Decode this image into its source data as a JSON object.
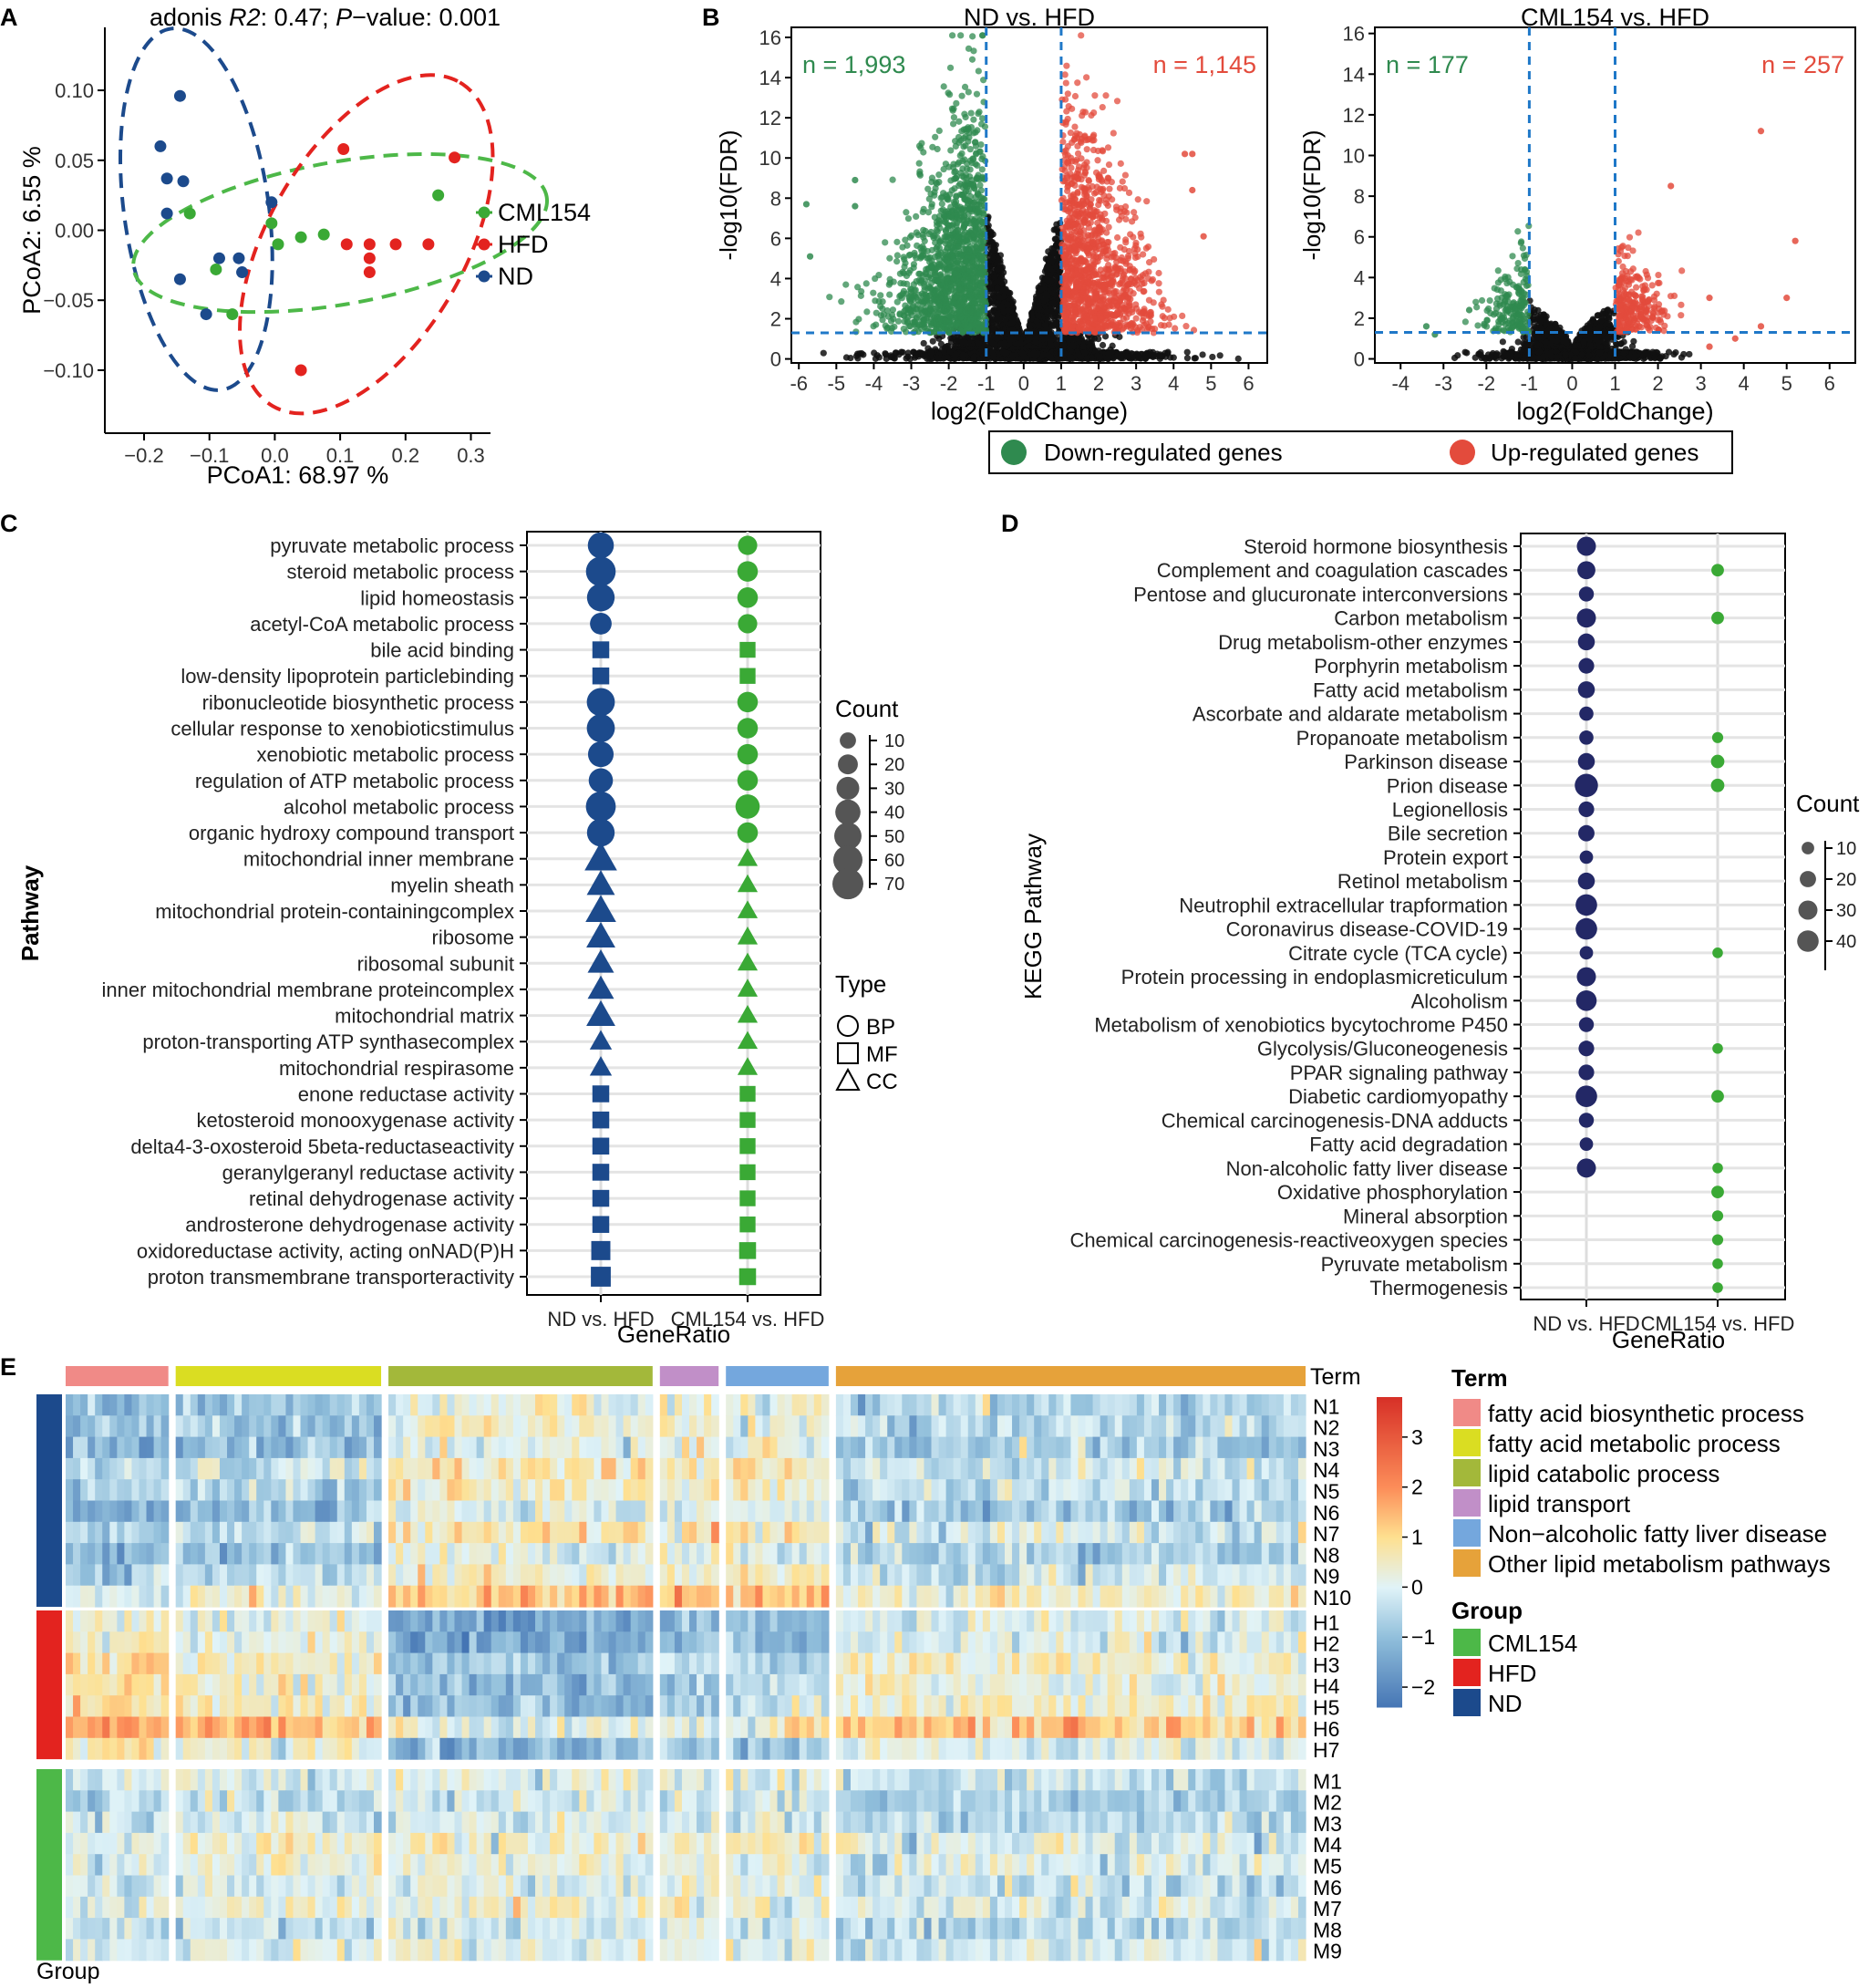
{
  "colors": {
    "green": "#3aa935",
    "red": "#e3231f",
    "blue": "#1c4a8c",
    "navy": "#232866",
    "volc_green": "#2f8a4f",
    "volc_red": "#e34b3c",
    "dash_blue": "#1f78c8",
    "ellipse_green": "#4db848"
  },
  "chart_data": [
    {
      "id": "A",
      "type": "scatter",
      "panel_label": "A",
      "title_parts": [
        "adonis ",
        "R2",
        ": 0.47; ",
        "P",
        "−value: 0.001"
      ],
      "xlabel": "PCoA1: 68.97 %",
      "ylabel": "PCoA2: 6.55 %",
      "xlim": [
        -0.26,
        0.33
      ],
      "ylim": [
        -0.145,
        0.145
      ],
      "xticks": [
        -0.2,
        -0.1,
        0.0,
        0.1,
        0.2,
        0.3
      ],
      "xtick_labels": [
        "−0.2",
        "−0.1",
        "0.0",
        "0.1",
        "0.2",
        "0.3"
      ],
      "yticks": [
        0.1,
        0.05,
        0.0,
        -0.05,
        -0.1
      ],
      "ytick_labels": [
        "0.10",
        "0.05",
        "0.00",
        "−0.05",
        "−0.10"
      ],
      "legend": [
        "CML154",
        "HFD",
        "ND"
      ],
      "series": [
        {
          "name": "ND",
          "color": "blue",
          "points": [
            [
              -0.145,
              0.096
            ],
            [
              -0.175,
              0.06
            ],
            [
              -0.165,
              0.037
            ],
            [
              -0.14,
              0.035
            ],
            [
              -0.165,
              0.012
            ],
            [
              -0.085,
              -0.02
            ],
            [
              -0.055,
              -0.02
            ],
            [
              -0.145,
              -0.035
            ],
            [
              -0.05,
              -0.03
            ],
            [
              -0.105,
              -0.06
            ],
            [
              -0.005,
              0.02
            ]
          ]
        },
        {
          "name": "HFD",
          "color": "red",
          "points": [
            [
              0.105,
              0.058
            ],
            [
              0.275,
              0.052
            ],
            [
              0.11,
              -0.01
            ],
            [
              0.145,
              -0.01
            ],
            [
              0.185,
              -0.01
            ],
            [
              0.235,
              -0.01
            ],
            [
              0.145,
              -0.02
            ],
            [
              0.145,
              -0.03
            ],
            [
              0.04,
              -0.1
            ]
          ]
        },
        {
          "name": "CML154",
          "color": "green",
          "points": [
            [
              -0.13,
              0.012
            ],
            [
              -0.005,
              0.005
            ],
            [
              0.04,
              -0.005
            ],
            [
              0.005,
              -0.01
            ],
            [
              -0.09,
              -0.028
            ],
            [
              0.25,
              0.025
            ],
            [
              0.075,
              -0.003
            ],
            [
              -0.065,
              -0.06
            ]
          ]
        }
      ]
    },
    {
      "id": "B1",
      "type": "scatter",
      "panel_label": "B",
      "title": "ND vs. HFD",
      "xlabel": "log2(FoldChange)",
      "ylabel": "-log10(FDR)",
      "xlim": [
        -6.2,
        6.5
      ],
      "ylim": [
        -0.2,
        16.5
      ],
      "xticks": [
        -6,
        -5,
        -4,
        -3,
        -2,
        -1,
        0,
        1,
        2,
        3,
        4,
        5,
        6
      ],
      "yticks": [
        0,
        2,
        4,
        6,
        8,
        10,
        12,
        14,
        16
      ],
      "thresholds": {
        "fc": 1,
        "fdr": 1.3
      },
      "annotations": {
        "down_label": "n = 1,993",
        "up_label": "n = 1,145"
      },
      "n_down": 1993,
      "n_up": 1145,
      "spread": 1.0,
      "fdr_scale": 16,
      "extreme_right": [
        [
          4.3,
          10.2
        ],
        [
          4.5,
          10.2
        ],
        [
          4.5,
          8.4
        ],
        [
          4.8,
          6.1
        ]
      ],
      "extreme_left": [
        [
          -5.8,
          7.7
        ],
        [
          -5.7,
          5.1
        ],
        [
          -4.5,
          8.9
        ],
        [
          -4.5,
          7.6
        ]
      ]
    },
    {
      "id": "B2",
      "type": "scatter",
      "title": "CML154 vs. HFD",
      "xlabel": "log2(FoldChange)",
      "ylabel": "-log10(FDR)",
      "xlim": [
        -4.6,
        6.6
      ],
      "ylim": [
        -0.2,
        16.3
      ],
      "xticks": [
        -4,
        -3,
        -2,
        -1,
        0,
        1,
        2,
        3,
        4,
        5,
        6
      ],
      "yticks": [
        0,
        2,
        4,
        6,
        8,
        10,
        12,
        14,
        16
      ],
      "thresholds": {
        "fc": 1,
        "fdr": 1.3
      },
      "annotations": {
        "down_label": "n = 177",
        "up_label": "n = 257"
      },
      "n_down": 177,
      "n_up": 257,
      "spread": 0.5,
      "fdr_scale": 5,
      "extreme_right": [
        [
          4.4,
          11.2
        ],
        [
          5.2,
          5.8
        ],
        [
          2.3,
          8.5
        ],
        [
          5.0,
          3.0
        ],
        [
          3.2,
          3.0
        ],
        [
          4.4,
          1.6
        ],
        [
          3.8,
          1.0
        ],
        [
          3.2,
          0.6
        ]
      ],
      "extreme_left": [
        [
          -3.4,
          1.6
        ],
        [
          -3.2,
          1.2
        ],
        [
          -2.4,
          2.4
        ]
      ]
    },
    {
      "id": "B_legend",
      "type": "legend",
      "items": [
        {
          "label": "Down-regulated genes",
          "color": "volc_green"
        },
        {
          "label": "Up-regulated genes",
          "color": "volc_red"
        }
      ]
    },
    {
      "id": "C",
      "type": "scatter",
      "panel_label": "C",
      "ylabel": "Pathway",
      "xlabel": "GeneRatio",
      "x_categories": [
        "ND vs. HFD",
        "CML154 vs. HFD"
      ],
      "size_legend_title": "Count",
      "size_legend": [
        10,
        20,
        30,
        40,
        50,
        60,
        70
      ],
      "type_legend_title": "Type",
      "type_legend": [
        "BP",
        "MF",
        "CC"
      ],
      "terms": [
        {
          "label": "pyruvate metabolic process",
          "t": "BP",
          "nd": 44,
          "cml": 18
        },
        {
          "label": "steroid metabolic process",
          "t": "BP",
          "nd": 63,
          "cml": 22
        },
        {
          "label": "lipid homeostasis",
          "t": "BP",
          "nd": 52,
          "cml": 22
        },
        {
          "label": "acetyl-CoA metabolic process",
          "t": "BP",
          "nd": 26,
          "cml": 18
        },
        {
          "label": "bile acid binding",
          "t": "MF",
          "nd": 22,
          "cml": 18
        },
        {
          "label": "low-density lipoprotein particlebinding",
          "t": "MF",
          "nd": 22,
          "cml": 18
        },
        {
          "label": "ribonucleotide biosynthetic process",
          "t": "BP",
          "nd": 54,
          "cml": 22
        },
        {
          "label": "cellular response to xenobioticstimulus",
          "t": "BP",
          "nd": 54,
          "cml": 22
        },
        {
          "label": "xenobiotic metabolic process",
          "t": "BP",
          "nd": 42,
          "cml": 22
        },
        {
          "label": "regulation of ATP metabolic process",
          "t": "BP",
          "nd": 36,
          "cml": 22
        },
        {
          "label": "alcohol metabolic process",
          "t": "BP",
          "nd": 64,
          "cml": 36
        },
        {
          "label": "organic hydroxy compound transport",
          "t": "BP",
          "nd": 52,
          "cml": 22
        },
        {
          "label": "mitochondrial inner membrane",
          "t": "CC",
          "nd": 70,
          "cml": 18
        },
        {
          "label": "myelin sheath",
          "t": "CC",
          "nd": 48,
          "cml": 18
        },
        {
          "label": "mitochondrial protein-containingcomplex",
          "t": "CC",
          "nd": 60,
          "cml": 18
        },
        {
          "label": "ribosome",
          "t": "CC",
          "nd": 52,
          "cml": 18
        },
        {
          "label": "ribosomal subunit",
          "t": "CC",
          "nd": 40,
          "cml": 18
        },
        {
          "label": "inner mitochondrial membrane proteincomplex",
          "t": "CC",
          "nd": 40,
          "cml": 18
        },
        {
          "label": "mitochondrial matrix",
          "t": "CC",
          "nd": 52,
          "cml": 18
        },
        {
          "label": "proton-transporting ATP synthasecomplex",
          "t": "CC",
          "nd": 24,
          "cml": 18
        },
        {
          "label": "mitochondrial respirasome",
          "t": "CC",
          "nd": 24,
          "cml": 18
        },
        {
          "label": "enone reductase activity",
          "t": "MF",
          "nd": 22,
          "cml": 18
        },
        {
          "label": "ketosteroid monooxygenase activity",
          "t": "MF",
          "nd": 22,
          "cml": 18
        },
        {
          "label": "delta4-3-oxosteroid 5beta-reductaseactivity",
          "t": "MF",
          "nd": 22,
          "cml": 18
        },
        {
          "label": "geranylgeranyl reductase activity",
          "t": "MF",
          "nd": 22,
          "cml": 18
        },
        {
          "label": "retinal dehydrogenase activity",
          "t": "MF",
          "nd": 22,
          "cml": 18
        },
        {
          "label": "androsterone dehydrogenase activity",
          "t": "MF",
          "nd": 22,
          "cml": 18
        },
        {
          "label": "oxidoreductase activity, acting onNAD(P)H",
          "t": "MF",
          "nd": 32,
          "cml": 22
        },
        {
          "label": "proton transmembrane transporteractivity",
          "t": "MF",
          "nd": 36,
          "cml": 22
        }
      ]
    },
    {
      "id": "D",
      "type": "scatter",
      "panel_label": "D",
      "ylabel": "KEGG Pathway",
      "xlabel": "GeneRatio",
      "x_categories": [
        "ND vs. HFD",
        "CML154 vs. HFD"
      ],
      "size_legend_title": "Count",
      "size_legend": [
        10,
        20,
        30,
        40
      ],
      "terms": [
        {
          "label": "Steroid hormone biosynthesis",
          "nd": 30,
          "cml": null
        },
        {
          "label": "Complement and coagulation cascades",
          "nd": 26,
          "cml": 10
        },
        {
          "label": "Pentose and glucuronate interconversions",
          "nd": 16,
          "cml": null
        },
        {
          "label": "Carbon metabolism",
          "nd": 30,
          "cml": 10
        },
        {
          "label": "Drug metabolism-other enzymes",
          "nd": 22,
          "cml": null
        },
        {
          "label": "Porphyrin metabolism",
          "nd": 18,
          "cml": null
        },
        {
          "label": "Fatty acid metabolism",
          "nd": 22,
          "cml": null
        },
        {
          "label": "Ascorbate and aldarate metabolism",
          "nd": 14,
          "cml": null
        },
        {
          "label": "Propanoate metabolism",
          "nd": 14,
          "cml": 7
        },
        {
          "label": "Parkinson disease",
          "nd": 22,
          "cml": 12
        },
        {
          "label": "Prion disease",
          "nd": 48,
          "cml": 12
        },
        {
          "label": "Legionellosis",
          "nd": 18,
          "cml": null
        },
        {
          "label": "Bile secretion",
          "nd": 20,
          "cml": null
        },
        {
          "label": "Protein export",
          "nd": 12,
          "cml": null
        },
        {
          "label": "Retinol metabolism",
          "nd": 22,
          "cml": null
        },
        {
          "label": "Neutrophil extracellular trapformation",
          "nd": 40,
          "cml": null
        },
        {
          "label": "Coronavirus disease-COVID-19",
          "nd": 40,
          "cml": null
        },
        {
          "label": "Citrate cycle (TCA cycle)",
          "nd": 12,
          "cml": 6
        },
        {
          "label": "Protein processing in endoplasmicreticulum",
          "nd": 30,
          "cml": null
        },
        {
          "label": "Alcoholism",
          "nd": 36,
          "cml": null
        },
        {
          "label": "Metabolism of xenobiotics bycytochrome P450",
          "nd": 16,
          "cml": null
        },
        {
          "label": "Glycolysis/Gluconeogenesis",
          "nd": 18,
          "cml": 6
        },
        {
          "label": "PPAR signaling pathway",
          "nd": 18,
          "cml": null
        },
        {
          "label": "Diabetic cardiomyopathy",
          "nd": 40,
          "cml": 10
        },
        {
          "label": "Chemical carcinogenesis-DNA adducts",
          "nd": 16,
          "cml": null
        },
        {
          "label": "Fatty acid degradation",
          "nd": 12,
          "cml": null
        },
        {
          "label": "Non-alcoholic fatty liver disease",
          "nd": 30,
          "cml": 6
        },
        {
          "label": "Oxidative phosphorylation",
          "nd": null,
          "cml": 10
        },
        {
          "label": "Mineral absorption",
          "nd": null,
          "cml": 7
        },
        {
          "label": "Chemical carcinogenesis-reactiveoxygen species",
          "nd": null,
          "cml": 7
        },
        {
          "label": "Pyruvate metabolism",
          "nd": null,
          "cml": 6
        },
        {
          "label": "Thermogenesis",
          "nd": null,
          "cml": 6
        }
      ]
    },
    {
      "id": "E",
      "type": "heatmap",
      "panel_label": "E",
      "col_annotation_title": "Term",
      "row_annotation_title": "Group",
      "colorbar_ticks": [
        3,
        2,
        1,
        0,
        -1,
        -2
      ],
      "colorbar_tick_labels": [
        "3",
        "2",
        "1",
        "0",
        "−1",
        "−2"
      ],
      "colorbar_range": [
        -2.4,
        3.8
      ],
      "terms": [
        {
          "label": "fatty acid biosynthetic process",
          "color": "#f08a87",
          "ncols": 14
        },
        {
          "label": "fatty acid metabolic process",
          "color": "#dadd22",
          "ncols": 28
        },
        {
          "label": "lipid catabolic process",
          "color": "#a3b83a",
          "ncols": 36
        },
        {
          "label": "lipid transport",
          "color": "#c18fc8",
          "ncols": 8
        },
        {
          "label": "Non−alcoholic fatty liver disease",
          "color": "#74a7dd",
          "ncols": 14
        },
        {
          "label": "Other lipid metabolism pathways",
          "color": "#e6a23a",
          "ncols": 64
        }
      ],
      "groups": [
        {
          "label": "CML154",
          "color": "#4db848",
          "rows": [
            "M1",
            "M2",
            "M3",
            "M4",
            "M5",
            "M6",
            "M7",
            "M8",
            "M9"
          ]
        },
        {
          "label": "HFD",
          "color": "#e3231f",
          "rows": [
            "H1",
            "H2",
            "H3",
            "H4",
            "H5",
            "H6",
            "H7"
          ]
        },
        {
          "label": "ND",
          "color": "#1c4a8c",
          "rows": [
            "N1",
            "N2",
            "N3",
            "N4",
            "N5",
            "N6",
            "N7",
            "N8",
            "N9",
            "N10"
          ]
        }
      ],
      "row_order": [
        "ND",
        "HFD",
        "CML154"
      ],
      "block_means": {
        "ND": [
          -0.9,
          -0.6,
          0.45,
          0.5,
          0.4,
          -0.4
        ],
        "HFD": [
          0.7,
          0.3,
          -1.2,
          -0.9,
          -0.8,
          0.1
        ],
        "CML154": [
          -0.1,
          0.1,
          0.2,
          0.3,
          0.2,
          -0.2
        ]
      }
    }
  ]
}
